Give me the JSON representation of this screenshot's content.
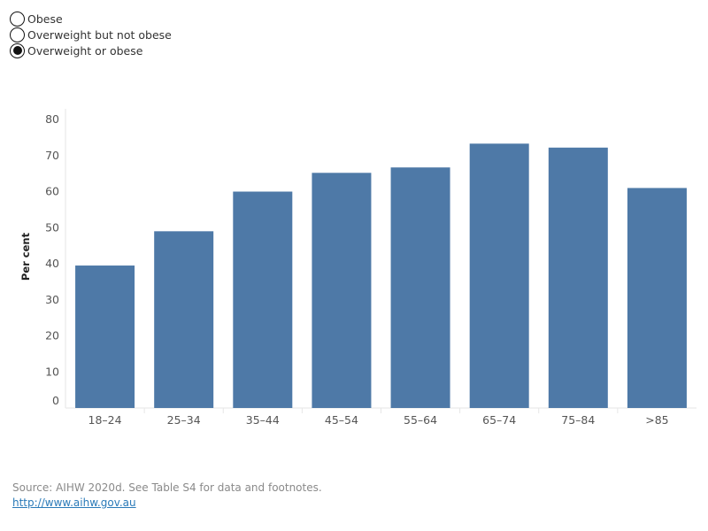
{
  "filters": {
    "options": [
      {
        "label": "Obese",
        "selected": false
      },
      {
        "label": "Overweight but not obese",
        "selected": false
      },
      {
        "label": "Overweight or obese",
        "selected": true
      }
    ]
  },
  "chart_data": {
    "type": "bar",
    "categories": [
      "18–24",
      "25–34",
      "35–44",
      "45–54",
      "55–64",
      "65–74",
      "75–84",
      ">85"
    ],
    "values": [
      39.5,
      49,
      60,
      65.2,
      66.7,
      73.3,
      72.2,
      61
    ],
    "ylabel": "Per cent",
    "xlabel": "",
    "ylim": [
      0,
      80
    ],
    "yticks": [
      0,
      10,
      20,
      30,
      40,
      50,
      60,
      70,
      80
    ],
    "bar_color": "#4e79a7",
    "grid": false
  },
  "footer": {
    "source": "Source: AIHW 2020d. See Table S4 for data and footnotes.",
    "link": "http://www.aihw.gov.au"
  }
}
